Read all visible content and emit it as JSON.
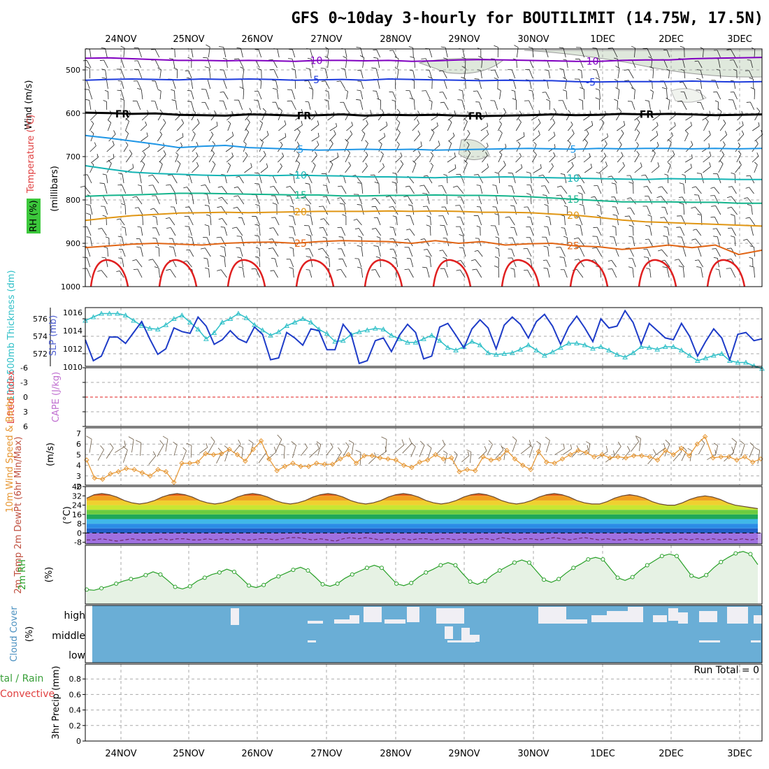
{
  "title": "GFS 0~10day 3-hourly for BOUTILIMIT (14.75W, 17.5N)",
  "dates": [
    "24NOV",
    "25NOV",
    "26NOV",
    "27NOV",
    "28NOV",
    "29NOV",
    "30NOV",
    "1DEC",
    "2DEC",
    "3DEC"
  ],
  "run_total": "Run Total = 0",
  "colors": {
    "purple": "#8000c0",
    "blue": "#1e3cdc",
    "black": "#000000",
    "lightblue": "#1e96e6",
    "teal": "#14b4b4",
    "green": "#14b48c",
    "gold": "#e09614",
    "orange": "#e06414",
    "red": "#e02020",
    "slp": "#1e3cc8",
    "thick": "#30c0c8",
    "wind10": "#e69632",
    "rh2m": "#28a028",
    "cloud": "#6aaed6"
  },
  "chart_data": [
    {
      "panel": "upper-air",
      "type": "line",
      "ylabel_wind": "Wind (m/s)",
      "ylabel_temp": "Temperature (°C)",
      "ylabel_rh": "RH (%)",
      "ylabel_p": "(millibars)",
      "y_ticks": [
        "500",
        "600",
        "700",
        "800",
        "900",
        "1000"
      ],
      "ylim": [
        1000,
        450
      ],
      "isotherms": [
        {
          "label": "-10",
          "labels": [
            "-10",
            "-10"
          ],
          "p": [
            473,
            472,
            474,
            476,
            478,
            478,
            479,
            478,
            479,
            480,
            478,
            478,
            479,
            478,
            480,
            479,
            477,
            476,
            477,
            478,
            479,
            480,
            480,
            478,
            477,
            477,
            474,
            473,
            472,
            471
          ]
        },
        {
          "label": "-5",
          "labels": [
            "-5",
            "-5"
          ],
          "p": [
            524,
            522,
            521,
            522,
            523,
            521,
            522,
            521,
            522,
            524,
            523,
            522,
            524,
            521,
            522,
            523,
            524,
            525,
            524,
            525,
            525,
            527,
            528,
            527,
            527,
            527,
            526,
            527,
            528,
            527
          ]
        },
        {
          "label": "FR",
          "labels": [
            "FR",
            "FR",
            "FR",
            "FR"
          ],
          "p": [
            599,
            600,
            602,
            601,
            604,
            605,
            606,
            603,
            604,
            606,
            605,
            603,
            606,
            604,
            605,
            604,
            606,
            607,
            606,
            605,
            603,
            605,
            604,
            602,
            603,
            602,
            603,
            605,
            604,
            603
          ]
        },
        {
          "label": "5",
          "labels": [
            "5",
            "5"
          ],
          "p": [
            652,
            658,
            665,
            672,
            680,
            677,
            675,
            680,
            682,
            684,
            686,
            685,
            684,
            685,
            684,
            686,
            685,
            684,
            683,
            682,
            683,
            684,
            682,
            683,
            682,
            682,
            683,
            682,
            683,
            682
          ]
        },
        {
          "label": "10",
          "labels": [
            "10",
            "10"
          ],
          "p": [
            722,
            730,
            737,
            740,
            742,
            744,
            745,
            744,
            745,
            744,
            745,
            746,
            748,
            748,
            749,
            750,
            748,
            749,
            748,
            749,
            750,
            751,
            752,
            753,
            754,
            752,
            753,
            753,
            754,
            754
          ]
        },
        {
          "label": "15",
          "labels": [
            "15",
            "15"
          ],
          "p": [
            793,
            791,
            790,
            788,
            786,
            786,
            787,
            788,
            789,
            790,
            790,
            792,
            792,
            791,
            791,
            790,
            791,
            791,
            792,
            794,
            797,
            800,
            803,
            806,
            806,
            806,
            807,
            807,
            809,
            809
          ]
        },
        {
          "label": "20",
          "labels": [
            "20",
            "20"
          ],
          "p": [
            849,
            843,
            838,
            835,
            832,
            831,
            830,
            831,
            830,
            829,
            828,
            828,
            828,
            827,
            828,
            827,
            828,
            830,
            830,
            831,
            834,
            837,
            842,
            848,
            852,
            854,
            856,
            858,
            860,
            862
          ]
        },
        {
          "label": "25",
          "labels": [
            "25",
            "25"
          ],
          "p": [
            912,
            908,
            904,
            902,
            904,
            906,
            902,
            900,
            899,
            902,
            898,
            896,
            897,
            898,
            902,
            896,
            902,
            898,
            906,
            903,
            902,
            908,
            910,
            916,
            912,
            906,
            912,
            906,
            928,
            918
          ]
        }
      ]
    },
    {
      "panel": "slp-thickness",
      "type": "line",
      "ylabel_thick": "1000-500mb Thickness (dm)",
      "ylabel_slp": "SLP (mb)",
      "left_ticks": [
        "576",
        "574",
        "572"
      ],
      "right_ticks": [
        "1016",
        "1014",
        "1012",
        "1010"
      ],
      "series": [
        {
          "name": "SLP",
          "values": [
            1013.0,
            1010.7,
            1011.2,
            1013.3,
            1013.3,
            1012.6,
            1013.8,
            1015.0,
            1013.1,
            1011.4,
            1012.0,
            1014.3,
            1013.9,
            1013.7,
            1015.5,
            1014.5,
            1012.5,
            1013.0,
            1014.0,
            1013.1,
            1012.7,
            1014.4,
            1013.6,
            1010.8,
            1011.0,
            1013.8,
            1013.2,
            1012.4,
            1014.2,
            1014.0,
            1011.9,
            1011.9,
            1014.7,
            1013.6,
            1010.4,
            1010.7,
            1012.9,
            1013.2,
            1011.7,
            1013.5,
            1014.7,
            1013.8,
            1010.9,
            1011.2,
            1014.4,
            1014.8,
            1013.5,
            1012.1,
            1014.2,
            1015.2,
            1014.3,
            1012.0,
            1014.6,
            1015.5,
            1014.7,
            1013.2,
            1015.0,
            1015.8,
            1014.5,
            1012.5,
            1014.4,
            1015.6,
            1014.3,
            1012.8,
            1015.3,
            1014.3,
            1014.5,
            1016.2,
            1014.9,
            1012.5,
            1014.8,
            1014.0,
            1013.2,
            1013.0,
            1014.8,
            1013.4,
            1011.2,
            1012.8,
            1014.2,
            1013.2,
            1010.8,
            1013.6,
            1013.8,
            1012.9,
            1013.1
          ]
        },
        {
          "name": "Thickness",
          "values": [
            575.8,
            576.2,
            576.6,
            576.6,
            576.6,
            576.4,
            575.8,
            575.2,
            574.9,
            574.8,
            575.3,
            576.0,
            576.4,
            575.6,
            574.8,
            573.7,
            574.4,
            575.6,
            576.0,
            576.6,
            576.1,
            575.3,
            574.7,
            574.1,
            574.5,
            575.2,
            575.6,
            576.0,
            575.6,
            574.8,
            574.3,
            573.4,
            573.5,
            574.2,
            574.5,
            574.7,
            574.9,
            574.8,
            574.1,
            573.7,
            573.3,
            573.3,
            573.7,
            574.1,
            573.5,
            572.7,
            572.4,
            572.8,
            573.4,
            573.0,
            572.1,
            571.9,
            572.0,
            572.1,
            572.5,
            573.0,
            572.4,
            571.8,
            572.2,
            572.7,
            573.2,
            573.2,
            573.0,
            572.6,
            572.8,
            572.4,
            571.9,
            571.6,
            572.1,
            572.8,
            572.7,
            572.5,
            572.8,
            572.8,
            572.4,
            571.8,
            571.2,
            571.5,
            571.8,
            572.0,
            571.2,
            571.0,
            571.0,
            570.6,
            570.3
          ]
        }
      ]
    },
    {
      "panel": "cape-li",
      "type": "line",
      "ylabel_li": "Lifted Index",
      "ylabel_cape": "CAPE (J/kg)",
      "ticks": [
        "-6",
        "-3",
        "0",
        "3",
        "6"
      ],
      "ylim": [
        -6,
        6
      ],
      "lifted_index_zero": 0
    },
    {
      "panel": "wind10m",
      "type": "line",
      "ylabel": "10m Wind Speed & Barbs",
      "unit": "(m/s)",
      "ticks": [
        "7",
        "6",
        "5",
        "4",
        "3",
        "2"
      ],
      "ylim": [
        2,
        7.5
      ],
      "series": [
        {
          "name": "10m Wind Speed",
          "values": [
            4.5,
            2.8,
            2.7,
            3.2,
            3.4,
            3.7,
            3.6,
            3.3,
            3.0,
            3.6,
            3.4,
            2.4,
            4.2,
            4.2,
            4.3,
            5.1,
            5.0,
            5.1,
            5.5,
            5.0,
            4.4,
            5.5,
            6.3,
            4.6,
            3.5,
            3.9,
            4.2,
            3.9,
            3.9,
            4.2,
            4.1,
            4.1,
            4.6,
            5.0,
            4.2,
            4.9,
            4.9,
            4.7,
            4.6,
            4.5,
            4.0,
            3.8,
            4.3,
            4.5,
            5.0,
            4.6,
            4.7,
            3.4,
            3.6,
            3.5,
            4.8,
            4.5,
            4.6,
            5.4,
            4.6,
            4.0,
            3.6,
            5.3,
            4.3,
            4.2,
            4.6,
            5.0,
            5.4,
            5.2,
            4.8,
            5.0,
            4.7,
            4.8,
            4.7,
            4.9,
            4.9,
            4.8,
            4.5,
            5.4,
            5.0,
            5.6,
            4.9,
            6.0,
            6.7,
            4.7,
            4.8,
            4.8,
            4.5,
            4.8,
            4.3,
            4.6
          ]
        }
      ]
    },
    {
      "panel": "temp2m",
      "type": "area",
      "ylabel": "2m Temp 2m DewPt (6hr Min/Max)",
      "unit": "(°C)",
      "ticks": [
        "40",
        "32",
        "24",
        "16",
        "8",
        "0",
        "-8"
      ],
      "ylim": [
        -9,
        40
      ],
      "series": [
        {
          "name": "2m Temp",
          "values": [
            30,
            33,
            34,
            33,
            31,
            28,
            26,
            25,
            26,
            28,
            31,
            33,
            34,
            33,
            31,
            28,
            26,
            25,
            26,
            28,
            31,
            33,
            34,
            33,
            31,
            28,
            26,
            25,
            26,
            28,
            31,
            33,
            34,
            33,
            31,
            28,
            26,
            25,
            26,
            28,
            31,
            33,
            34,
            33,
            31,
            28,
            26,
            25,
            26,
            28,
            31,
            33,
            34,
            33,
            31,
            28,
            26,
            25,
            26,
            28,
            31,
            33,
            34,
            33,
            31,
            28,
            26,
            25,
            25,
            27,
            30,
            32,
            33,
            32,
            30,
            27,
            25,
            24,
            24,
            26,
            29,
            31,
            32,
            31,
            29,
            26,
            24,
            23,
            22,
            21
          ]
        },
        {
          "name": "2m DewPt",
          "values": [
            -6,
            -6,
            -5,
            -6,
            -7,
            -6,
            -5,
            -6,
            -6,
            -6,
            -5,
            -6,
            -5,
            -5,
            -6,
            -6,
            -5,
            -6,
            -5,
            -6,
            -5,
            -6,
            -6,
            -5,
            -5,
            -6,
            -5,
            -4,
            -4,
            -5,
            -6,
            -5,
            -6,
            -7,
            -5,
            -4,
            -5,
            -4,
            -5,
            -6,
            -5,
            -6,
            -5,
            -6,
            -5,
            -5,
            -6,
            -5,
            -5,
            -6,
            -5,
            -6,
            -5,
            -5,
            -6,
            -4,
            -5,
            -6,
            -5,
            -5,
            -6,
            -5,
            -4,
            -5,
            -6,
            -5,
            -4,
            -5,
            -6,
            -5,
            -6,
            -6,
            -5,
            -6,
            -6,
            -5,
            -5,
            -6,
            -6,
            -5,
            -6,
            -5,
            -6,
            -5,
            -6,
            -5,
            -6,
            -5,
            -6,
            -5
          ]
        }
      ]
    },
    {
      "panel": "rh2m",
      "type": "area",
      "ylabel": "2m RH",
      "unit": "(%)",
      "ylim": [
        0,
        100
      ],
      "series": [
        {
          "name": "2m RH",
          "values": [
            22,
            21,
            24,
            27,
            31,
            35,
            38,
            40,
            44,
            49,
            45,
            36,
            26,
            23,
            27,
            35,
            40,
            45,
            48,
            53,
            49,
            39,
            28,
            25,
            29,
            37,
            42,
            47,
            52,
            56,
            51,
            41,
            30,
            27,
            31,
            39,
            45,
            50,
            55,
            59,
            55,
            43,
            31,
            28,
            32,
            41,
            48,
            53,
            59,
            63,
            59,
            46,
            34,
            30,
            35,
            44,
            51,
            57,
            63,
            67,
            63,
            50,
            37,
            33,
            38,
            47,
            55,
            61,
            68,
            71,
            68,
            54,
            40,
            36,
            41,
            51,
            59,
            66,
            73,
            76,
            73,
            58,
            43,
            39,
            44,
            55,
            64,
            71,
            77,
            80,
            76,
            60
          ]
        }
      ]
    },
    {
      "panel": "cloud",
      "type": "area",
      "ylabel": "Cloud Cover",
      "unit": "(%)",
      "levels": [
        "high",
        "middle",
        "low"
      ]
    },
    {
      "panel": "precip",
      "type": "bar",
      "ylabel": "3hr Precip (mm)",
      "legend_left": "tal / Rain",
      "legend_left2": "Convective",
      "ticks": [
        "0.8",
        "0.6",
        "0.4",
        "0.2",
        "0"
      ],
      "ylim": [
        0,
        1
      ],
      "values": []
    }
  ]
}
